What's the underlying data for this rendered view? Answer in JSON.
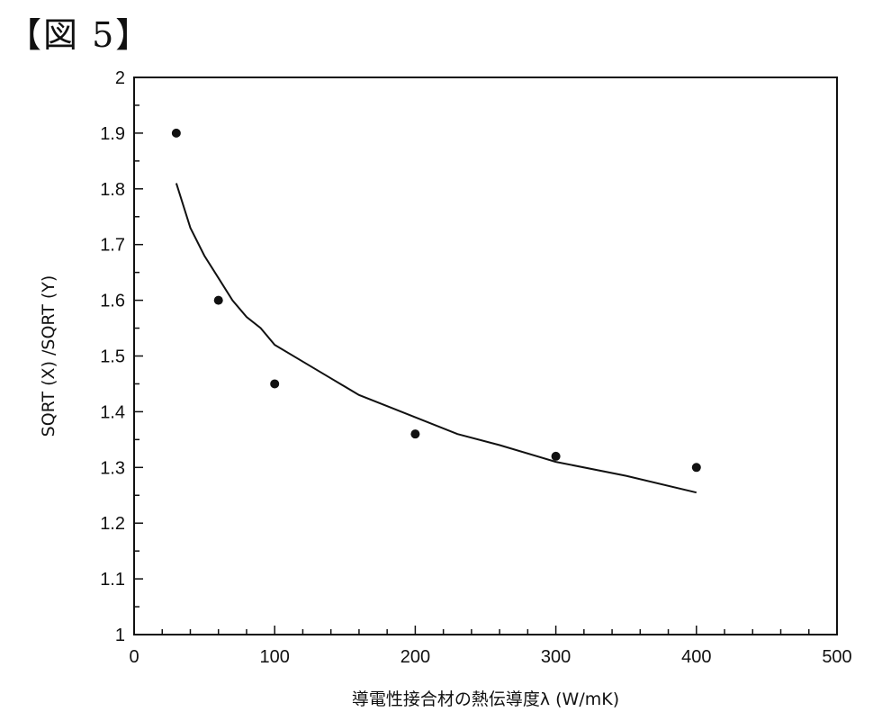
{
  "figure_label": "【図 5】",
  "chart_data": {
    "type": "scatter",
    "title": "",
    "xlabel": "導電性接合材の熱伝導度λ (W/mK)",
    "ylabel": "SQRT (X) /SQRT (Y)",
    "xlim": [
      0,
      500
    ],
    "ylim": [
      1,
      2
    ],
    "x_ticks": [
      "0",
      "100",
      "200",
      "300",
      "400",
      "500"
    ],
    "y_ticks": [
      "1",
      "1.1",
      "1.2",
      "1.3",
      "1.4",
      "1.5",
      "1.6",
      "1.7",
      "1.8",
      "1.9",
      "2"
    ],
    "grid": false,
    "series": [
      {
        "type": "scatter",
        "x": [
          30,
          60,
          100,
          200,
          300,
          400
        ],
        "y": [
          1.9,
          1.6,
          1.45,
          1.36,
          1.32,
          1.3
        ]
      },
      {
        "type": "line",
        "x": [
          30,
          40,
          50,
          60,
          70,
          80,
          90,
          100,
          120,
          140,
          160,
          180,
          200,
          230,
          260,
          300,
          350,
          400
        ],
        "y": [
          1.81,
          1.73,
          1.68,
          1.64,
          1.6,
          1.57,
          1.55,
          1.52,
          1.49,
          1.46,
          1.43,
          1.41,
          1.39,
          1.36,
          1.34,
          1.31,
          1.285,
          1.255
        ]
      }
    ]
  }
}
